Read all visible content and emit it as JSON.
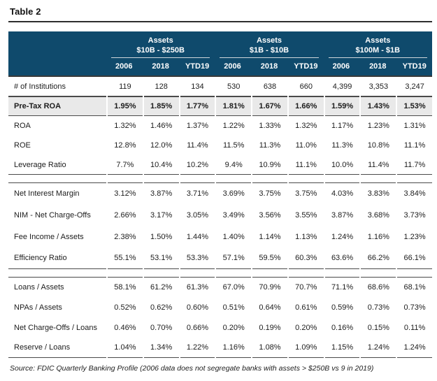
{
  "title": "Table 2",
  "source": "Source: FDIC Quarterly Banking Profile (2006 data does not segregate banks with assets > $250B vs 9 in 2019)",
  "colors": {
    "header_bg": "#0f4a6c",
    "header_text": "#ffffff",
    "highlight_bg": "#e9e9e9",
    "line": "#4a4a4a"
  },
  "table": {
    "col_groups": [
      {
        "title": "Assets",
        "range": "$10B - $250B",
        "years": [
          "2006",
          "2018",
          "YTD19"
        ]
      },
      {
        "title": "Assets",
        "range": "$1B - $10B",
        "years": [
          "2006",
          "2018",
          "YTD19"
        ]
      },
      {
        "title": "Assets",
        "range": "$100M - $1B",
        "years": [
          "2006",
          "2018",
          "YTD19"
        ]
      }
    ],
    "sections": [
      {
        "rows": [
          {
            "label": "# of Institutions",
            "highlight": false,
            "values": [
              "119",
              "128",
              "134",
              "530",
              "638",
              "660",
              "4,399",
              "3,353",
              "3,247"
            ]
          },
          {
            "label": "Pre-Tax ROA",
            "highlight": true,
            "values": [
              "1.95%",
              "1.85%",
              "1.77%",
              "1.81%",
              "1.67%",
              "1.66%",
              "1.59%",
              "1.43%",
              "1.53%"
            ]
          },
          {
            "label": "ROA",
            "highlight": false,
            "values": [
              "1.32%",
              "1.46%",
              "1.37%",
              "1.22%",
              "1.33%",
              "1.32%",
              "1.17%",
              "1.23%",
              "1.31%"
            ]
          },
          {
            "label": "ROE",
            "highlight": false,
            "values": [
              "12.8%",
              "12.0%",
              "11.4%",
              "11.5%",
              "11.3%",
              "11.0%",
              "11.3%",
              "10.8%",
              "11.1%"
            ]
          },
          {
            "label": "Leverage Ratio",
            "highlight": false,
            "values": [
              "7.7%",
              "10.4%",
              "10.2%",
              "9.4%",
              "10.9%",
              "11.1%",
              "10.0%",
              "11.4%",
              "11.7%"
            ]
          }
        ]
      },
      {
        "rows": [
          {
            "label": "Net Interest Margin",
            "highlight": false,
            "values": [
              "3.12%",
              "3.87%",
              "3.71%",
              "3.69%",
              "3.75%",
              "3.75%",
              "4.03%",
              "3.83%",
              "3.84%"
            ]
          },
          {
            "label": "NIM - Net Charge-Offs",
            "highlight": false,
            "values": [
              "2.66%",
              "3.17%",
              "3.05%",
              "3.49%",
              "3.56%",
              "3.55%",
              "3.87%",
              "3.68%",
              "3.73%"
            ]
          },
          {
            "label": "Fee Income / Assets",
            "highlight": false,
            "values": [
              "2.38%",
              "1.50%",
              "1.44%",
              "1.40%",
              "1.14%",
              "1.13%",
              "1.24%",
              "1.16%",
              "1.23%"
            ]
          },
          {
            "label": "Efficiency Ratio",
            "highlight": false,
            "values": [
              "55.1%",
              "53.1%",
              "53.3%",
              "57.1%",
              "59.5%",
              "60.3%",
              "63.6%",
              "66.2%",
              "66.1%"
            ]
          }
        ]
      },
      {
        "rows": [
          {
            "label": "Loans / Assets",
            "highlight": false,
            "values": [
              "58.1%",
              "61.2%",
              "61.3%",
              "67.0%",
              "70.9%",
              "70.7%",
              "71.1%",
              "68.6%",
              "68.1%"
            ]
          },
          {
            "label": "NPAs / Assets",
            "highlight": false,
            "values": [
              "0.52%",
              "0.62%",
              "0.60%",
              "0.51%",
              "0.64%",
              "0.61%",
              "0.59%",
              "0.73%",
              "0.73%"
            ]
          },
          {
            "label": "Net Charge-Offs / Loans",
            "highlight": false,
            "values": [
              "0.46%",
              "0.70%",
              "0.66%",
              "0.20%",
              "0.19%",
              "0.20%",
              "0.16%",
              "0.15%",
              "0.11%"
            ]
          },
          {
            "label": "Reserve / Loans",
            "highlight": false,
            "values": [
              "1.04%",
              "1.34%",
              "1.22%",
              "1.16%",
              "1.08%",
              "1.09%",
              "1.15%",
              "1.24%",
              "1.24%"
            ]
          }
        ]
      }
    ]
  }
}
